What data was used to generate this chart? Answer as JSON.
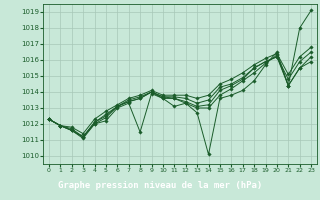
{
  "title": "Graphe pression niveau de la mer (hPa)",
  "bg_color": "#c8e8d8",
  "plot_bg_color": "#c8e8d8",
  "grid_color": "#a8c8b8",
  "line_color": "#1a5c2a",
  "bottom_bar_color": "#2a7a3a",
  "title_color": "#ffffff",
  "ylim": [
    1009.5,
    1019.5
  ],
  "xlim": [
    -0.5,
    23.5
  ],
  "yticks": [
    1010,
    1011,
    1012,
    1013,
    1014,
    1015,
    1016,
    1017,
    1018,
    1019
  ],
  "xticks": [
    0,
    1,
    2,
    3,
    4,
    5,
    6,
    7,
    8,
    9,
    10,
    11,
    12,
    13,
    14,
    15,
    16,
    17,
    18,
    19,
    20,
    21,
    22,
    23
  ],
  "series": [
    [
      1012.3,
      1011.9,
      1011.6,
      1011.1,
      1012.0,
      1012.2,
      1013.0,
      1013.3,
      1011.5,
      1013.9,
      1013.6,
      1013.1,
      1013.3,
      1012.7,
      1010.1,
      1013.6,
      1013.8,
      1014.1,
      1014.7,
      1015.7,
      1016.5,
      1014.4,
      1018.0,
      1019.1
    ],
    [
      1012.3,
      1011.9,
      1011.6,
      1011.2,
      1012.1,
      1012.5,
      1013.1,
      1013.4,
      1013.6,
      1014.0,
      1013.6,
      1013.6,
      1013.3,
      1013.0,
      1013.0,
      1013.8,
      1014.2,
      1014.7,
      1015.2,
      1015.8,
      1016.3,
      1014.4,
      1015.5,
      1016.2
    ],
    [
      1012.3,
      1011.9,
      1011.6,
      1011.2,
      1012.0,
      1012.4,
      1013.1,
      1013.4,
      1013.6,
      1014.0,
      1013.7,
      1013.6,
      1013.4,
      1013.1,
      1013.2,
      1014.1,
      1014.4,
      1014.8,
      1015.5,
      1015.9,
      1016.2,
      1014.4,
      1015.5,
      1015.9
    ],
    [
      1012.3,
      1011.9,
      1011.7,
      1011.2,
      1012.1,
      1012.6,
      1013.1,
      1013.5,
      1013.7,
      1014.0,
      1013.7,
      1013.7,
      1013.6,
      1013.3,
      1013.5,
      1014.3,
      1014.5,
      1014.9,
      1015.5,
      1015.9,
      1016.2,
      1014.8,
      1015.9,
      1016.5
    ],
    [
      1012.3,
      1011.9,
      1011.8,
      1011.4,
      1012.3,
      1012.8,
      1013.2,
      1013.6,
      1013.8,
      1014.1,
      1013.8,
      1013.8,
      1013.8,
      1013.6,
      1013.8,
      1014.5,
      1014.8,
      1015.2,
      1015.7,
      1016.1,
      1016.4,
      1015.1,
      1016.2,
      1016.8
    ]
  ]
}
